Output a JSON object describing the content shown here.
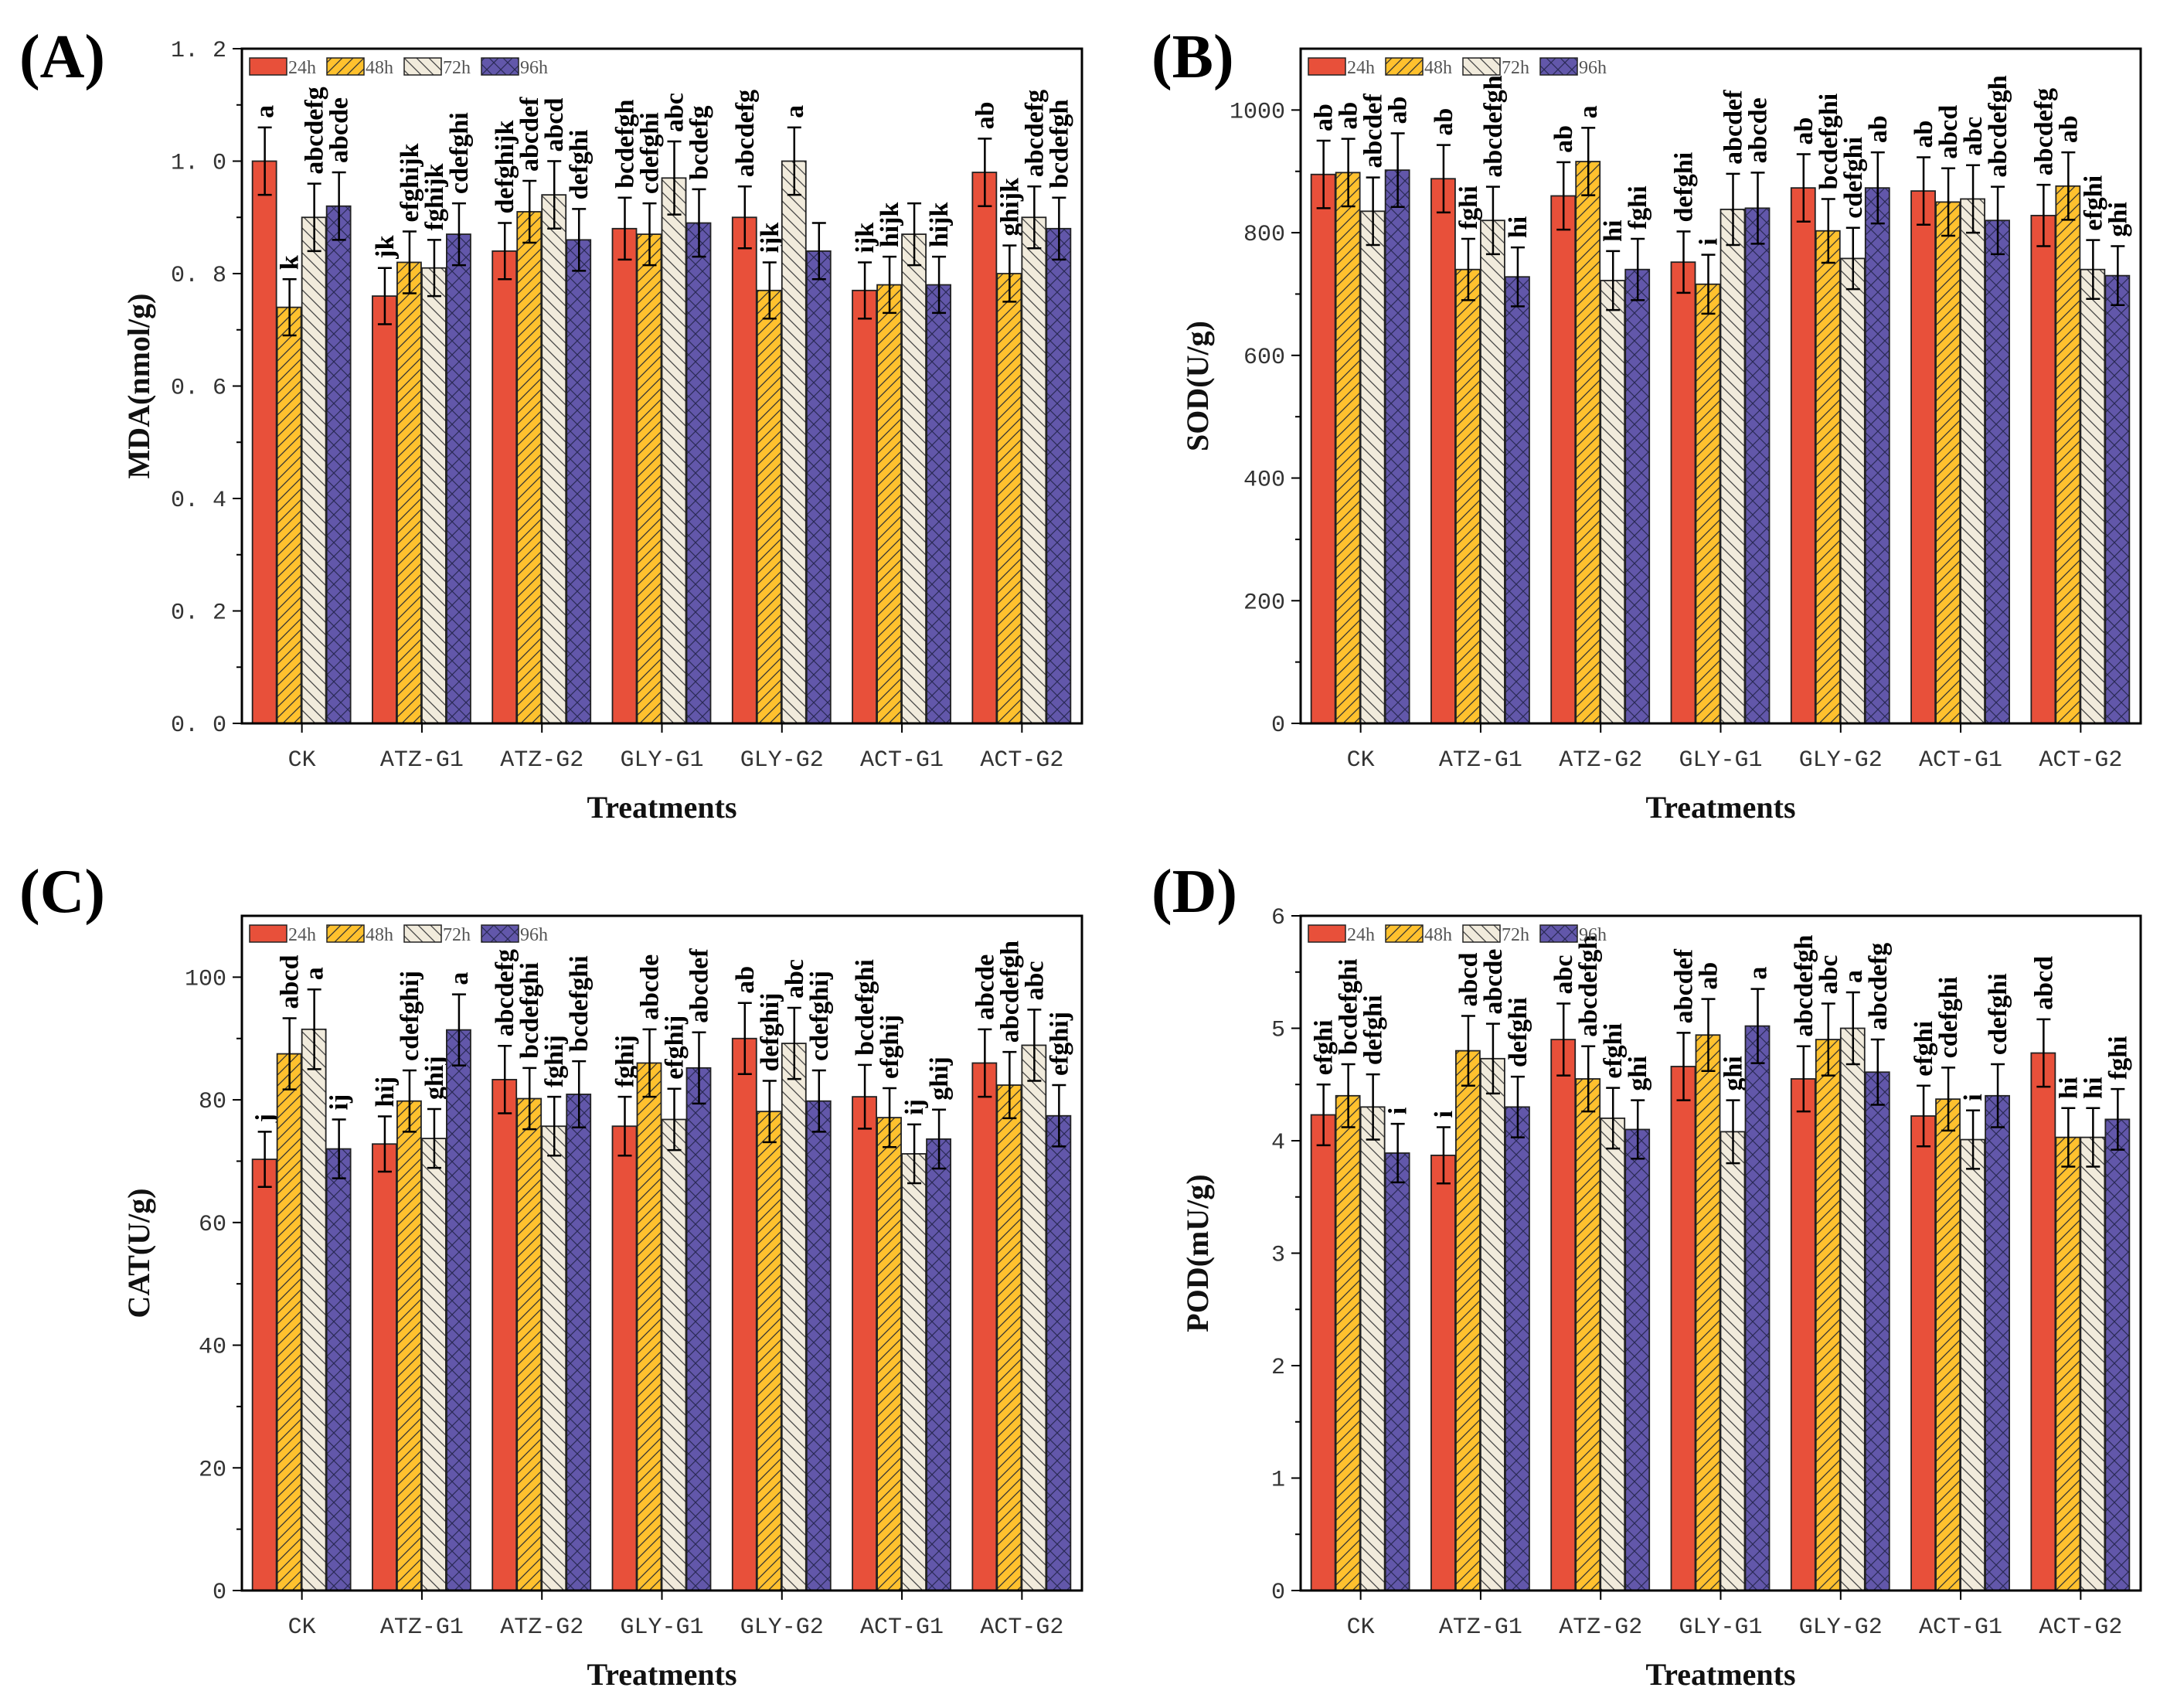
{
  "chart_data": [
    {
      "panel": "(A)",
      "type": "bar",
      "ylabel": "MDA(nmol/g)",
      "xlabel": "Treatments",
      "ylim": [
        0,
        1.2
      ],
      "yticks": [
        0,
        0.2,
        0.4,
        0.6,
        0.8,
        1.0,
        1.2
      ],
      "ytick_labels": [
        "0. 0",
        "0. 2",
        "0. 4",
        "0. 6",
        "0. 8",
        "1. 0",
        "1. 2"
      ],
      "categories": [
        "CK",
        "ATZ-G1",
        "ATZ-G2",
        "GLY-G1",
        "GLY-G2",
        "ACT-G1",
        "ACT-G2"
      ],
      "legend": "top-left",
      "series": [
        {
          "name": "24h",
          "values": [
            1.0,
            0.76,
            0.84,
            0.88,
            0.9,
            0.77,
            0.98
          ],
          "errors": [
            0.06,
            0.05,
            0.05,
            0.055,
            0.055,
            0.05,
            0.06
          ],
          "letters": [
            "a",
            "jk",
            "defghijk",
            "bcdefgh",
            "abcdefg",
            "ijk",
            "ab"
          ]
        },
        {
          "name": "48h",
          "values": [
            0.74,
            0.82,
            0.91,
            0.87,
            0.77,
            0.78,
            0.8
          ],
          "errors": [
            0.05,
            0.055,
            0.055,
            0.055,
            0.05,
            0.05,
            0.05
          ],
          "letters": [
            "k",
            "efghijk",
            "abcdef",
            "cdefghi",
            "ijk",
            "hijk",
            "ghijk"
          ]
        },
        {
          "name": "72h",
          "values": [
            0.9,
            0.81,
            0.94,
            0.97,
            1.0,
            0.87,
            0.9
          ],
          "errors": [
            0.06,
            0.05,
            0.06,
            0.065,
            0.06,
            0.055,
            0.055
          ],
          "letters": [
            "abcdefg",
            "fghijk",
            "abcd",
            "abc",
            "a",
            "",
            "abcdefg"
          ]
        },
        {
          "name": "96h",
          "values": [
            0.92,
            0.87,
            0.86,
            0.89,
            0.84,
            0.78,
            0.88
          ],
          "errors": [
            0.06,
            0.055,
            0.055,
            0.06,
            0.05,
            0.05,
            0.055
          ],
          "letters": [
            "abcde",
            "cdefghi",
            "defghi",
            "bcdefg",
            "",
            "hijk",
            "bcdefgh"
          ]
        }
      ]
    },
    {
      "panel": "(B)",
      "type": "bar",
      "ylabel": "SOD(U/g)",
      "xlabel": "Treatments",
      "ylim": [
        0,
        1100
      ],
      "yticks": [
        0,
        200,
        400,
        600,
        800,
        1000
      ],
      "ytick_labels": [
        "0",
        "200",
        "400",
        "600",
        "800",
        "1000"
      ],
      "categories": [
        "CK",
        "ATZ-G1",
        "ATZ-G2",
        "GLY-G1",
        "GLY-G2",
        "ACT-G1",
        "ACT-G2"
      ],
      "legend": "top-left",
      "series": [
        {
          "name": "24h",
          "values": [
            895,
            888,
            860,
            752,
            873,
            868,
            828
          ],
          "errors": [
            55,
            55,
            55,
            50,
            55,
            55,
            50
          ],
          "letters": [
            "ab",
            "ab",
            "ab",
            "defghi",
            "ab",
            "ab",
            "abcdefg"
          ]
        },
        {
          "name": "48h",
          "values": [
            898,
            740,
            916,
            716,
            803,
            850,
            876
          ],
          "errors": [
            55,
            50,
            55,
            48,
            52,
            55,
            55
          ],
          "letters": [
            "ab",
            "fghi",
            "a",
            "i",
            "bcdefghi",
            "abcd",
            "ab"
          ]
        },
        {
          "name": "72h",
          "values": [
            835,
            820,
            722,
            838,
            758,
            855,
            740
          ],
          "errors": [
            55,
            55,
            48,
            58,
            50,
            55,
            48
          ],
          "letters": [
            "abcdef",
            "abcdefgh",
            "hi",
            "abcdef",
            "cdefghi",
            "abc",
            "efghi"
          ]
        },
        {
          "name": "96h",
          "values": [
            902,
            728,
            740,
            840,
            873,
            820,
            730
          ],
          "errors": [
            60,
            48,
            50,
            58,
            58,
            55,
            48
          ],
          "letters": [
            "ab",
            "hi",
            "fghi",
            "abcde",
            "ab",
            "abcdefgh",
            "ghi"
          ]
        }
      ]
    },
    {
      "panel": "(C)",
      "type": "bar",
      "ylabel": "CAT(U/g)",
      "xlabel": "Treatments",
      "ylim": [
        0,
        110
      ],
      "yticks": [
        0,
        20,
        40,
        60,
        80,
        100
      ],
      "ytick_labels": [
        "0",
        "20",
        "40",
        "60",
        "80",
        "100"
      ],
      "categories": [
        "CK",
        "ATZ-G1",
        "ATZ-G2",
        "GLY-G1",
        "GLY-G2",
        "ACT-G1",
        "ACT-G2"
      ],
      "legend": "top-left",
      "series": [
        {
          "name": "24h",
          "values": [
            70.3,
            72.8,
            83.3,
            75.7,
            90.0,
            80.5,
            86.0
          ],
          "errors": [
            4.5,
            4.5,
            5.5,
            4.8,
            5.8,
            5.2,
            5.5
          ],
          "letters": [
            "j",
            "hij",
            "abcdefg",
            "fghij",
            "ab",
            "bcdefghi",
            "abcde"
          ]
        },
        {
          "name": "48h",
          "values": [
            87.5,
            79.8,
            80.2,
            86.0,
            78.1,
            77.1,
            82.4
          ],
          "errors": [
            5.8,
            5.0,
            5.0,
            5.5,
            5.0,
            4.8,
            5.4
          ],
          "letters": [
            "abcd",
            "cdefghij",
            "bcdefghi",
            "abcde",
            "defghij",
            "efghij",
            "abcdefgh"
          ]
        },
        {
          "name": "72h",
          "values": [
            91.5,
            73.7,
            75.7,
            76.8,
            89.2,
            71.2,
            88.9
          ],
          "errors": [
            6.5,
            4.8,
            4.8,
            5.0,
            5.8,
            4.8,
            5.8
          ],
          "letters": [
            "a",
            "ghij",
            "fghij",
            "efghij",
            "abc",
            "ij",
            "abc"
          ]
        },
        {
          "name": "96h",
          "values": [
            72.0,
            91.4,
            80.9,
            85.2,
            79.8,
            73.6,
            77.4
          ],
          "errors": [
            4.8,
            5.8,
            5.4,
            5.8,
            5.0,
            4.8,
            5.0
          ],
          "letters": [
            "ij",
            "a",
            "bcdefghi",
            "abcdef",
            "cdefghij",
            "ghij",
            "efghij"
          ]
        }
      ]
    },
    {
      "panel": "(D)",
      "type": "bar",
      "ylabel": "POD(mU/g)",
      "xlabel": "Treatments",
      "ylim": [
        0,
        6
      ],
      "yticks": [
        0,
        1,
        2,
        3,
        4,
        5,
        6
      ],
      "ytick_labels": [
        "0",
        "1",
        "2",
        "3",
        "4",
        "5",
        "6"
      ],
      "categories": [
        "CK",
        "ATZ-G1",
        "ATZ-G2",
        "GLY-G1",
        "GLY-G2",
        "ACT-G1",
        "ACT-G2"
      ],
      "legend": "top-left",
      "series": [
        {
          "name": "24h",
          "values": [
            4.23,
            3.87,
            4.9,
            4.66,
            4.55,
            4.22,
            4.78
          ],
          "errors": [
            0.27,
            0.25,
            0.32,
            0.3,
            0.29,
            0.27,
            0.3
          ],
          "letters": [
            "efghi",
            "i",
            "abc",
            "abcdef",
            "abcdefgh",
            "efghi",
            "abcd"
          ]
        },
        {
          "name": "48h",
          "values": [
            4.4,
            4.8,
            4.55,
            4.94,
            4.9,
            4.37,
            4.03
          ],
          "errors": [
            0.28,
            0.31,
            0.29,
            0.32,
            0.32,
            0.28,
            0.26
          ],
          "letters": [
            "bcdefghi",
            "abcd",
            "abcdefgh",
            "ab",
            "abc",
            "cdefghi",
            "hi"
          ]
        },
        {
          "name": "72h",
          "values": [
            4.3,
            4.73,
            4.2,
            4.08,
            5.0,
            4.01,
            4.03
          ],
          "errors": [
            0.29,
            0.31,
            0.27,
            0.28,
            0.32,
            0.26,
            0.26
          ],
          "letters": [
            "defghi",
            "abcde",
            "efghi",
            "ghi",
            "a",
            "i",
            "hi"
          ]
        },
        {
          "name": "96h",
          "values": [
            3.89,
            4.3,
            4.1,
            5.02,
            4.61,
            4.4,
            4.19
          ],
          "errors": [
            0.26,
            0.27,
            0.26,
            0.33,
            0.29,
            0.28,
            0.27
          ],
          "letters": [
            "i",
            "defghi",
            "ghi",
            "a",
            "abcdefg",
            "cdefghi",
            "fghi"
          ]
        }
      ]
    }
  ],
  "colors": {
    "24h": "#E8503A",
    "48h": "#FFC12E",
    "72h": "#F1EBDC",
    "96h": "#6257AA"
  }
}
